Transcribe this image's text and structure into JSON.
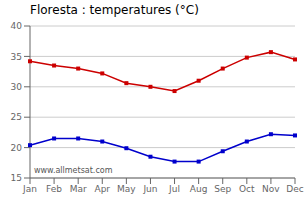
{
  "chart_data": {
    "type": "line",
    "title": "Floresta : temperatures (°C)",
    "categories": [
      "Jan",
      "Feb",
      "Mar",
      "Apr",
      "May",
      "Jun",
      "Jul",
      "Aug",
      "Sep",
      "Oct",
      "Nov",
      "Dec"
    ],
    "series": [
      {
        "color": "#cc0000",
        "marker": "square",
        "values": [
          34.2,
          33.5,
          33.0,
          32.2,
          30.6,
          30.0,
          29.3,
          31.0,
          33.0,
          34.8,
          35.7,
          34.5
        ]
      },
      {
        "color": "#0000cc",
        "marker": "square",
        "values": [
          20.4,
          21.5,
          21.5,
          21.0,
          19.9,
          18.5,
          17.7,
          17.7,
          19.4,
          21.0,
          22.2,
          22.0
        ]
      }
    ],
    "ylim": [
      15,
      40
    ],
    "yticks": [
      15,
      20,
      25,
      30,
      35,
      40
    ],
    "grid": true,
    "annotations": [
      "www.allmetsat.com"
    ]
  }
}
